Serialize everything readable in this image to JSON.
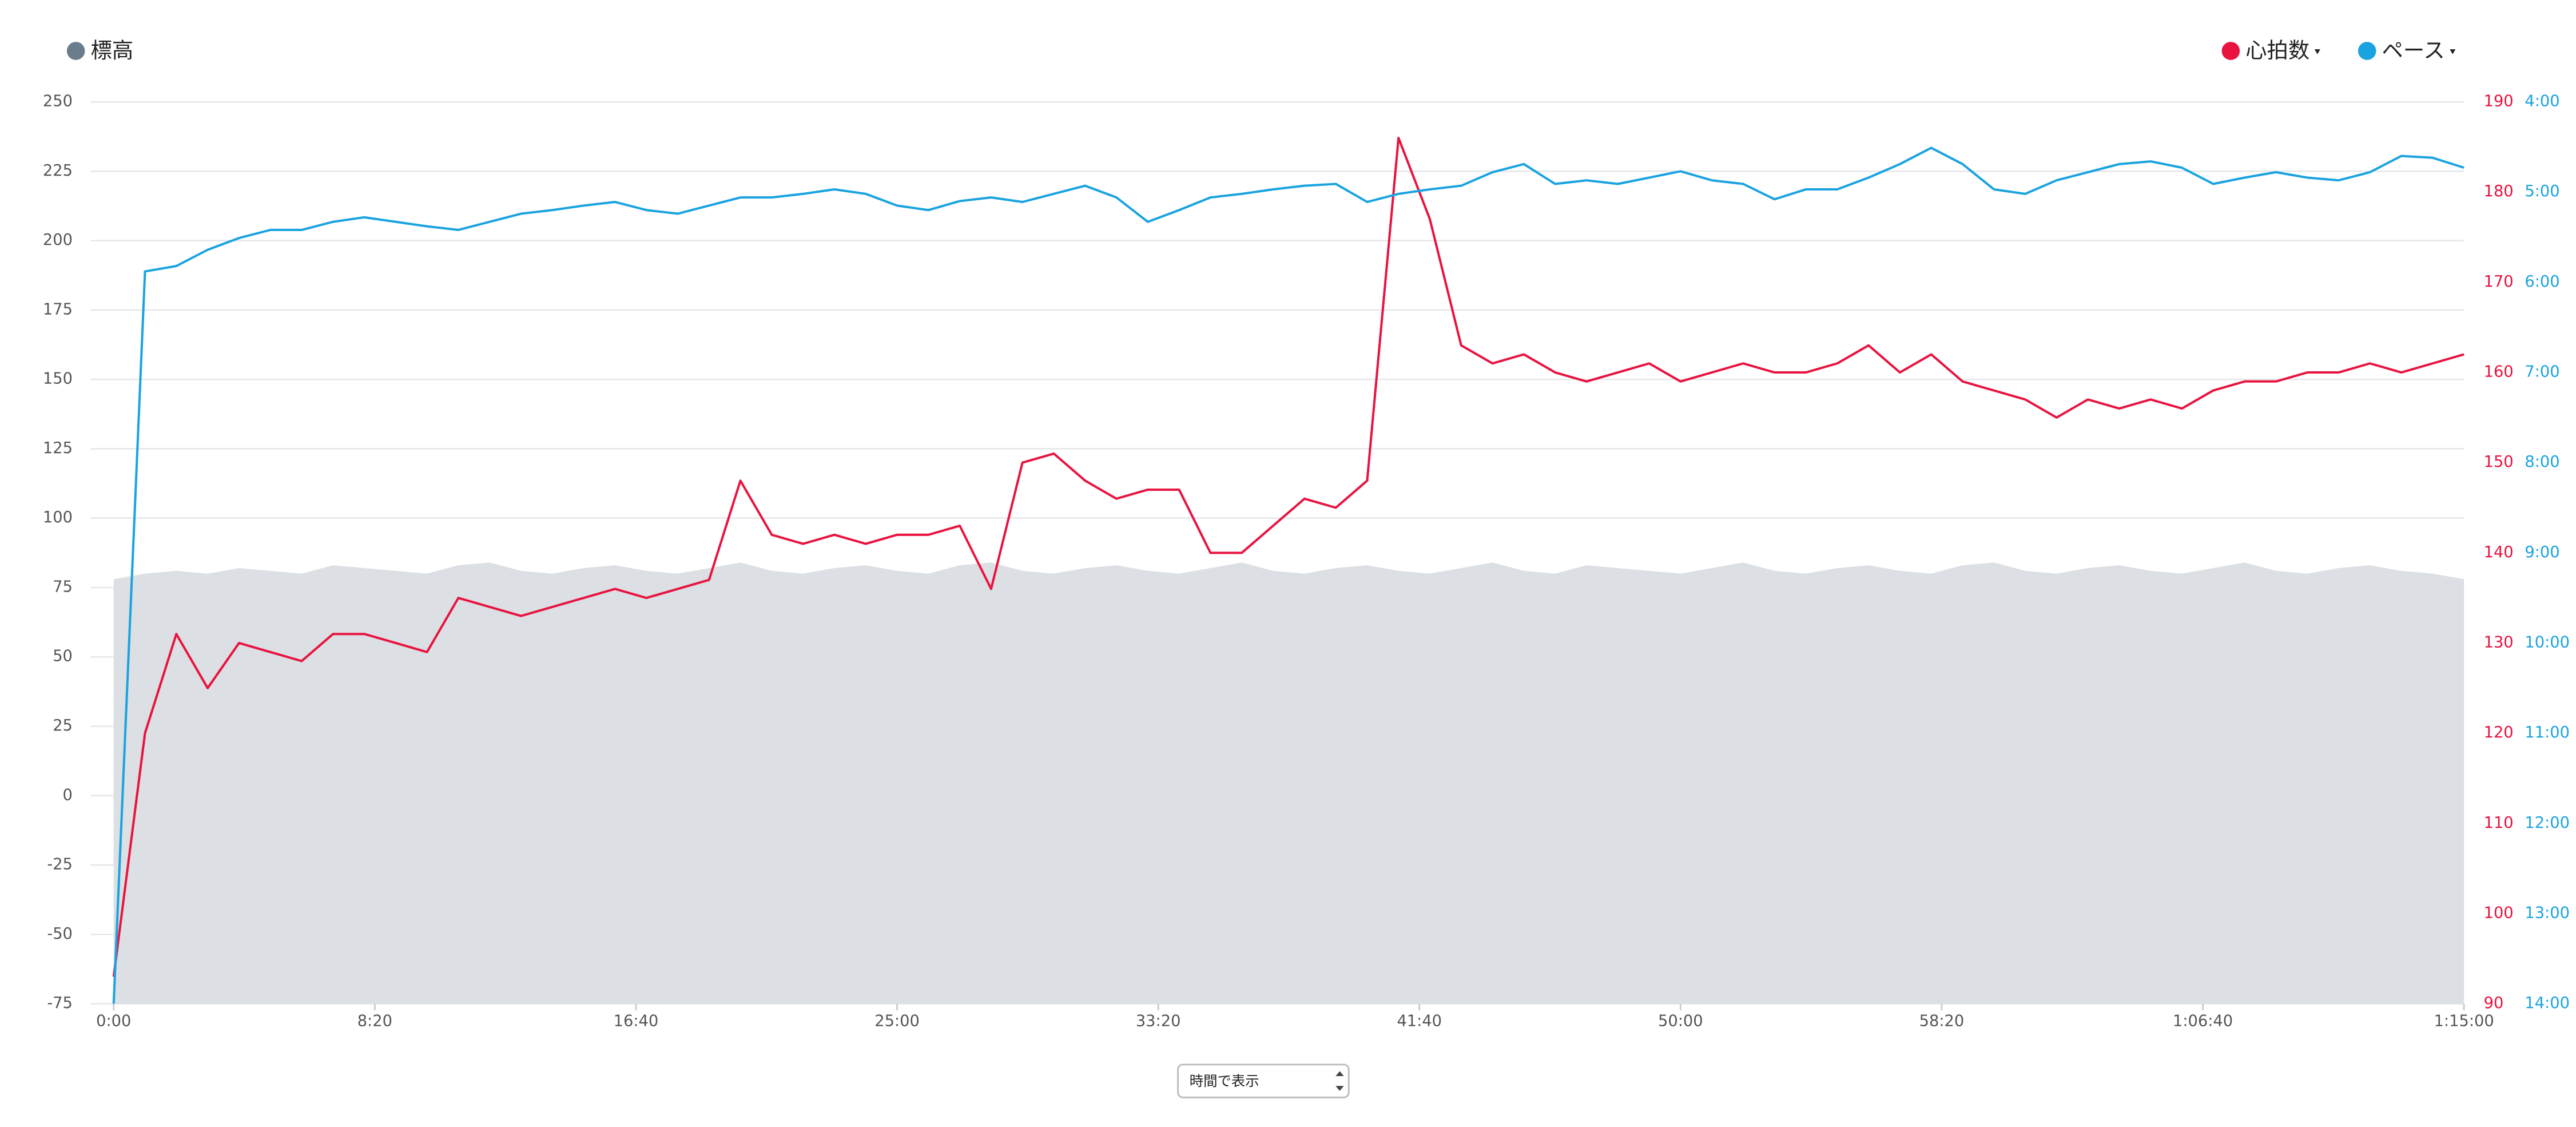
{
  "chart_data": {
    "type": "line",
    "legend": "top",
    "grid": true,
    "x": [
      0,
      60,
      120,
      180,
      240,
      300,
      360,
      420,
      480,
      540,
      600,
      660,
      720,
      780,
      840,
      900,
      960,
      1020,
      1080,
      1140,
      1200,
      1260,
      1320,
      1380,
      1440,
      1500,
      1560,
      1620,
      1680,
      1740,
      1800,
      1860,
      1920,
      1980,
      2040,
      2100,
      2160,
      2220,
      2280,
      2340,
      2400,
      2460,
      2520,
      2580,
      2640,
      2700,
      2760,
      2820,
      2880,
      2940,
      3000,
      3060,
      3120,
      3180,
      3240,
      3300,
      3360,
      3420,
      3480,
      3540,
      3600,
      3660,
      3720,
      3780,
      3840,
      3900,
      3960,
      4020,
      4080,
      4140,
      4200,
      4260,
      4320,
      4380,
      4440,
      4500
    ],
    "xlim": [
      0,
      4500
    ],
    "xticks": [
      {
        "value": 0,
        "label": "0:00"
      },
      {
        "value": 500,
        "label": "8:20"
      },
      {
        "value": 1000,
        "label": "16:40"
      },
      {
        "value": 1500,
        "label": "25:00"
      },
      {
        "value": 2000,
        "label": "33:20"
      },
      {
        "value": 2500,
        "label": "41:40"
      },
      {
        "value": 3000,
        "label": "50:00"
      },
      {
        "value": 3500,
        "label": "58:20"
      },
      {
        "value": 4000,
        "label": "1:06:40"
      },
      {
        "value": 4500,
        "label": "1:15:00"
      }
    ],
    "ylim": [
      -75,
      250
    ],
    "yticks": [
      -75,
      -50,
      -25,
      0,
      25,
      50,
      75,
      100,
      125,
      150,
      175,
      200,
      225,
      250
    ],
    "y2lim": [
      90,
      190
    ],
    "y2ticks": [
      90,
      100,
      110,
      120,
      130,
      140,
      150,
      160,
      170,
      180,
      190
    ],
    "y3lim": [
      14,
      4
    ],
    "y3ticks": [
      {
        "value": 4,
        "label": "4:00"
      },
      {
        "value": 5,
        "label": "5:00"
      },
      {
        "value": 6,
        "label": "6:00"
      },
      {
        "value": 7,
        "label": "7:00"
      },
      {
        "value": 8,
        "label": "8:00"
      },
      {
        "value": 9,
        "label": "9:00"
      },
      {
        "value": 10,
        "label": "10:00"
      },
      {
        "value": 11,
        "label": "11:00"
      },
      {
        "value": 12,
        "label": "12:00"
      },
      {
        "value": 13,
        "label": "13:00"
      },
      {
        "value": 14,
        "label": "14:00"
      }
    ],
    "series": [
      {
        "name": "標高",
        "color": "#6b7d8c",
        "fill": "#dcdfe3",
        "axis": "y",
        "values": [
          78,
          80,
          81,
          80,
          82,
          81,
          80,
          83,
          82,
          81,
          80,
          83,
          84,
          81,
          80,
          82,
          83,
          81,
          80,
          82,
          84,
          81,
          80,
          82,
          83,
          81,
          80,
          83,
          84,
          81,
          80,
          82,
          83,
          81,
          80,
          82,
          84,
          81,
          80,
          82,
          83,
          81,
          80,
          82,
          84,
          81,
          80,
          83,
          82,
          81,
          80,
          82,
          84,
          81,
          80,
          82,
          83,
          81,
          80,
          83,
          84,
          81,
          80,
          82,
          83,
          81,
          80,
          82,
          84,
          81,
          80,
          82,
          83,
          81,
          80,
          78
        ]
      },
      {
        "name": "心拍数",
        "color": "#e8133f",
        "axis": "y2",
        "values": [
          93,
          120,
          131,
          125,
          130,
          129,
          128,
          131,
          131,
          130,
          129,
          135,
          134,
          133,
          134,
          135,
          136,
          135,
          136,
          137,
          148,
          142,
          141,
          142,
          141,
          142,
          142,
          143,
          136,
          150,
          151,
          148,
          146,
          147,
          147,
          140,
          140,
          143,
          146,
          145,
          148,
          186,
          177,
          163,
          161,
          162,
          160,
          159,
          160,
          161,
          159,
          160,
          161,
          160,
          160,
          161,
          163,
          160,
          162,
          159,
          158,
          157,
          155,
          157,
          156,
          157,
          156,
          158,
          159,
          159,
          160,
          160,
          161,
          160,
          161,
          162
        ]
      },
      {
        "name": "ペース",
        "color": "#1aa3e0",
        "axis": "y3",
        "values": [
          14,
          5.88,
          5.82,
          5.64,
          5.51,
          5.42,
          5.42,
          5.33,
          5.28,
          5.33,
          5.38,
          5.42,
          5.33,
          5.24,
          5.2,
          5.15,
          5.11,
          5.2,
          5.24,
          5.15,
          5.06,
          5.06,
          5.02,
          4.97,
          5.02,
          5.15,
          5.2,
          5.1,
          5.06,
          5.11,
          5.02,
          4.93,
          5.06,
          5.33,
          5.2,
          5.06,
          5.02,
          4.97,
          4.93,
          4.91,
          5.11,
          5.02,
          4.97,
          4.93,
          4.78,
          4.69,
          4.91,
          4.87,
          4.91,
          4.84,
          4.77,
          4.87,
          4.91,
          5.08,
          4.97,
          4.97,
          4.84,
          4.69,
          4.51,
          4.69,
          4.97,
          5.02,
          4.87,
          4.78,
          4.69,
          4.66,
          4.73,
          4.91,
          4.84,
          4.78,
          4.84,
          4.87,
          4.78,
          4.6,
          4.62,
          4.73
        ]
      }
    ]
  },
  "display_mode_select": "時間で表示"
}
